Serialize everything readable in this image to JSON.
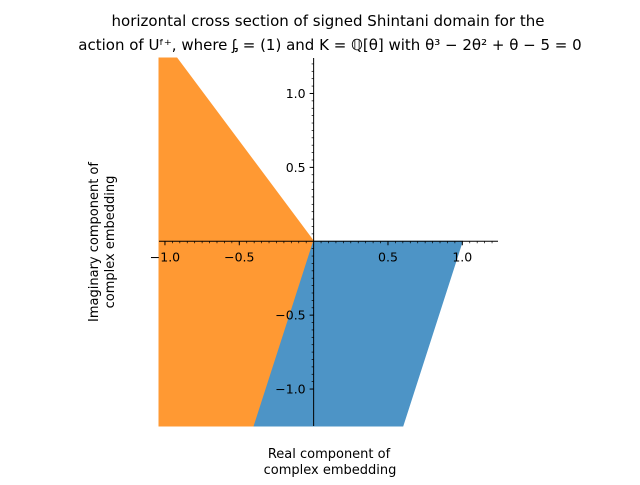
{
  "chart_data": {
    "type": "area",
    "title_lines": [
      "horizontal cross section of signed Shintani domain for the",
      "action of Uᶠ⁺, where ᶋ = (1) and K = ℚ[θ] with θ³ − 2θ² + θ − 5 = 0"
    ],
    "xlabel_lines": [
      "Real component of",
      "complex embedding"
    ],
    "ylabel_lines": [
      "Imaginary component of",
      "complex embedding"
    ],
    "xlim": [
      -1.04,
      1.24
    ],
    "ylim": [
      -1.25,
      1.24
    ],
    "x_ticks": [
      -1.0,
      -0.5,
      0.5,
      1.0
    ],
    "x_tick_labels": [
      "−1.0",
      "−0.5",
      "0.5",
      "1.0"
    ],
    "y_ticks": [
      -1.0,
      -0.5,
      0.5,
      1.0
    ],
    "y_tick_labels": [
      "−1.0",
      "−0.5",
      "0.5",
      "1.0"
    ],
    "series": [
      {
        "color": "#ff9933",
        "polygon": [
          [
            0.0,
            0.0
          ],
          [
            -0.92,
            1.24
          ],
          [
            -1.04,
            1.24
          ],
          [
            -1.04,
            -1.25
          ],
          [
            -0.4,
            -1.25
          ]
        ]
      },
      {
        "color": "#4d94c6",
        "polygon": [
          [
            0.0,
            0.0
          ],
          [
            1.0,
            0.0
          ],
          [
            0.6,
            -1.25
          ],
          [
            -0.4,
            -1.25
          ]
        ]
      }
    ]
  }
}
